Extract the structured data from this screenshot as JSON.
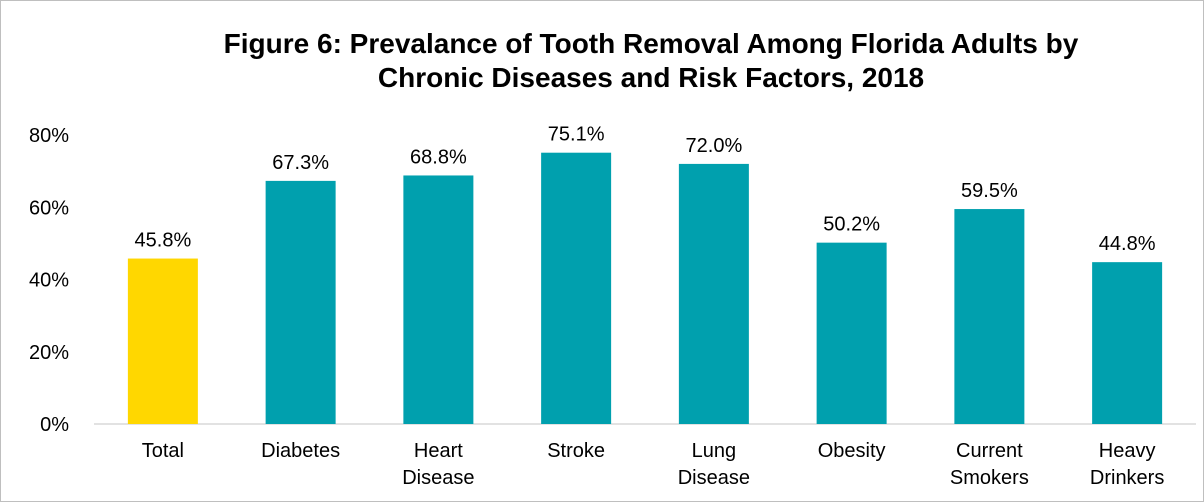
{
  "chart_data": {
    "type": "bar",
    "title_lines": [
      "Figure 6: Prevalance of Tooth Removal Among Florida Adults by",
      "Chronic Diseases and Risk Factors, 2018"
    ],
    "categories": [
      [
        "Total"
      ],
      [
        "Diabetes"
      ],
      [
        "Heart",
        "Disease"
      ],
      [
        "Stroke"
      ],
      [
        "Lung",
        "Disease"
      ],
      [
        "Obesity"
      ],
      [
        "Current",
        "Smokers"
      ],
      [
        "Heavy",
        "Drinkers"
      ]
    ],
    "values": [
      45.8,
      67.3,
      68.8,
      75.1,
      72.0,
      50.2,
      59.5,
      44.8
    ],
    "data_labels": [
      "45.8%",
      "67.3%",
      "68.8%",
      "75.1%",
      "72.0%",
      "50.2%",
      "59.5%",
      "44.8%"
    ],
    "y_ticks": [
      0,
      20,
      40,
      60,
      80
    ],
    "y_tick_labels": [
      "0%",
      "20%",
      "40%",
      "60%",
      "80%"
    ],
    "ylim": [
      0,
      80
    ],
    "grid": false,
    "colors": {
      "highlight": "#FFD700",
      "bar": "#00A0AE",
      "axis": "#d9d9d9"
    },
    "highlight_index": 0
  }
}
